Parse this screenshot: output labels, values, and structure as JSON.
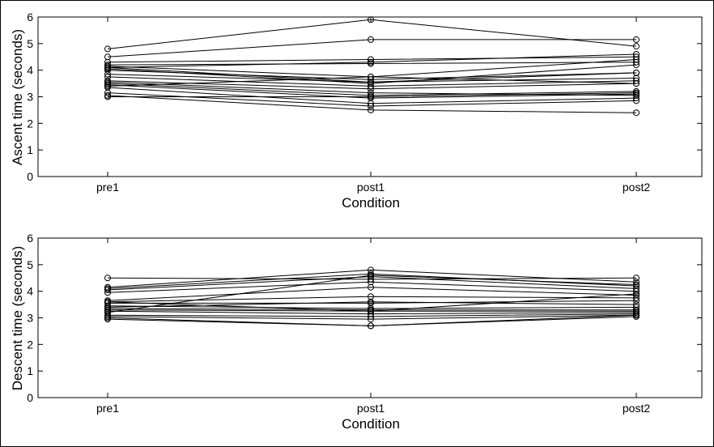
{
  "colors": {
    "line": "#000000",
    "background": "#ffffff"
  },
  "chart_data": [
    {
      "type": "line",
      "xlabel": "Condition",
      "ylabel": "Ascent time (seconds)",
      "categories": [
        "pre1",
        "post1",
        "post2"
      ],
      "ylim": [
        0,
        6
      ],
      "yticks": [
        0,
        1,
        2,
        3,
        4,
        5,
        6
      ],
      "marker": "open-circle",
      "grid": false,
      "series": [
        {
          "values": [
            4.8,
            5.9,
            4.9
          ]
        },
        {
          "values": [
            4.5,
            5.15,
            5.15
          ]
        },
        {
          "values": [
            4.3,
            4.4,
            4.5
          ]
        },
        {
          "values": [
            4.2,
            4.25,
            4.3
          ]
        },
        {
          "values": [
            4.1,
            4.3,
            4.6
          ]
        },
        {
          "values": [
            4.15,
            3.75,
            4.4
          ]
        },
        {
          "values": [
            4.05,
            3.5,
            4.2
          ]
        },
        {
          "values": [
            4.0,
            3.65,
            3.9
          ]
        },
        {
          "values": [
            3.85,
            3.55,
            3.7
          ]
        },
        {
          "values": [
            3.75,
            3.4,
            3.6
          ]
        },
        {
          "values": [
            3.6,
            3.3,
            3.5
          ]
        },
        {
          "values": [
            3.5,
            3.05,
            3.2
          ]
        },
        {
          "values": [
            3.45,
            2.95,
            3.1
          ]
        },
        {
          "values": [
            3.35,
            2.75,
            2.95
          ]
        },
        {
          "values": [
            3.15,
            2.65,
            2.85
          ]
        },
        {
          "values": [
            3.05,
            2.5,
            2.4
          ]
        },
        {
          "values": [
            3.0,
            3.0,
            3.15
          ]
        },
        {
          "values": [
            3.4,
            3.75,
            3.5
          ]
        },
        {
          "values": [
            3.55,
            3.15,
            3.05
          ]
        },
        {
          "values": [
            4.1,
            3.55,
            3.9
          ]
        }
      ]
    },
    {
      "type": "line",
      "xlabel": "Condition",
      "ylabel": "Descent time (seconds)",
      "categories": [
        "pre1",
        "post1",
        "post2"
      ],
      "ylim": [
        0,
        6
      ],
      "yticks": [
        0,
        1,
        2,
        3,
        4,
        5,
        6
      ],
      "marker": "open-circle",
      "grid": false,
      "series": [
        {
          "values": [
            4.5,
            4.45,
            4.5
          ]
        },
        {
          "values": [
            4.15,
            4.8,
            4.35
          ]
        },
        {
          "values": [
            4.1,
            4.65,
            4.2
          ]
        },
        {
          "values": [
            4.05,
            4.55,
            4.1
          ]
        },
        {
          "values": [
            3.95,
            4.35,
            4.0
          ]
        },
        {
          "values": [
            3.65,
            4.15,
            3.85
          ]
        },
        {
          "values": [
            3.6,
            3.8,
            3.75
          ]
        },
        {
          "values": [
            3.55,
            3.55,
            3.65
          ]
        },
        {
          "values": [
            3.45,
            3.35,
            3.4
          ]
        },
        {
          "values": [
            3.35,
            3.3,
            3.3
          ]
        },
        {
          "values": [
            3.3,
            3.25,
            3.25
          ]
        },
        {
          "values": [
            3.25,
            3.15,
            3.2
          ]
        },
        {
          "values": [
            3.1,
            3.05,
            3.15
          ]
        },
        {
          "values": [
            3.05,
            2.95,
            3.1
          ]
        },
        {
          "values": [
            2.95,
            2.7,
            3.05
          ]
        },
        {
          "values": [
            3.0,
            2.7,
            3.1
          ]
        },
        {
          "values": [
            3.2,
            4.6,
            4.25
          ]
        },
        {
          "values": [
            3.6,
            3.25,
            3.9
          ]
        },
        {
          "values": [
            3.4,
            3.6,
            3.5
          ]
        }
      ]
    }
  ]
}
